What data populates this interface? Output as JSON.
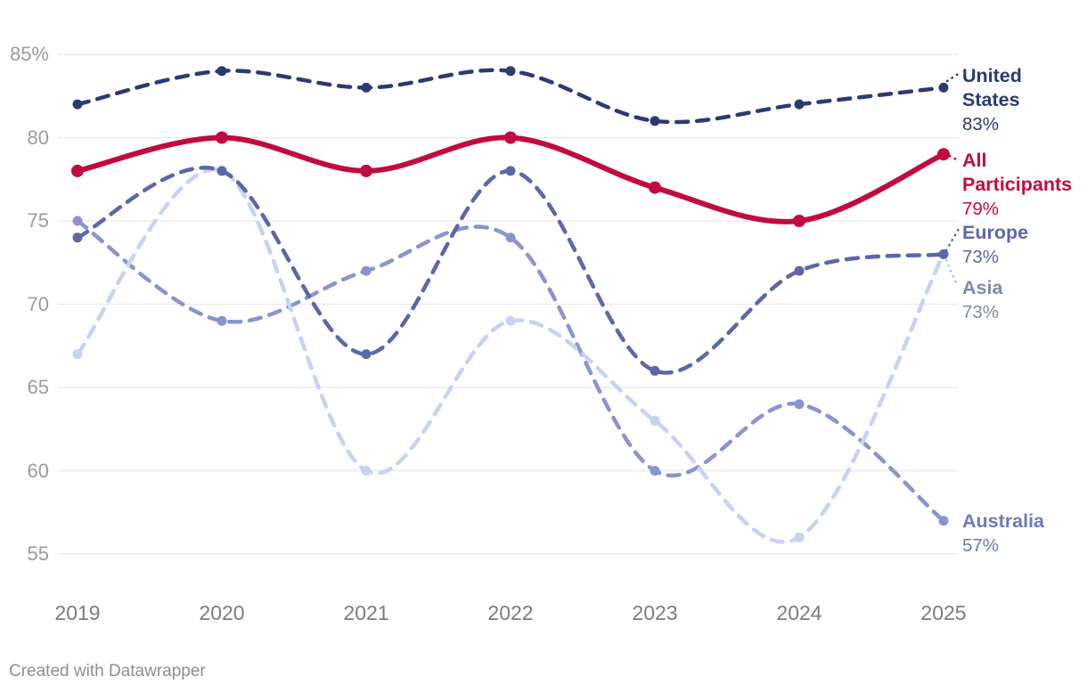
{
  "chart_data": {
    "type": "line",
    "title": "",
    "xlabel": "",
    "ylabel": "",
    "x": [
      2019,
      2020,
      2021,
      2022,
      2023,
      2024,
      2025
    ],
    "x_tick_labels": [
      "2019",
      "2020",
      "2021",
      "2022",
      "2023",
      "2024",
      "2025"
    ],
    "y_ticks": [
      {
        "value": 85,
        "label": "85%"
      },
      {
        "value": 80,
        "label": "80"
      },
      {
        "value": 75,
        "label": "75"
      },
      {
        "value": 70,
        "label": "70"
      },
      {
        "value": 65,
        "label": "65"
      },
      {
        "value": 60,
        "label": "60"
      },
      {
        "value": 55,
        "label": "55"
      }
    ],
    "ylim": [
      55,
      85
    ],
    "grid": "horizontal",
    "legend_position": "end-of-line-labels-right",
    "line_shape": "smooth-spline",
    "series": [
      {
        "name": "United States",
        "label_lines": [
          "United",
          "States"
        ],
        "value_label": "83%",
        "values": [
          82,
          84,
          83,
          84,
          81,
          82,
          83
        ],
        "color": "#2c3a72",
        "label_color": "#2b3a72",
        "style": "dashed",
        "width": 4.5,
        "z": 3
      },
      {
        "name": "All Participants",
        "label_lines": [
          "All",
          "Participants"
        ],
        "value_label": "79%",
        "values": [
          78,
          80,
          78,
          80,
          77,
          75,
          79
        ],
        "color": "#c10b3f",
        "label_color": "#c10b3f",
        "style": "solid",
        "width": 6,
        "z": 4
      },
      {
        "name": "Europe",
        "label_lines": [
          "Europe"
        ],
        "value_label": "73%",
        "values": [
          74,
          78,
          67,
          78,
          66,
          72,
          73
        ],
        "color": "#5b67a8",
        "label_color": "#5b67a8",
        "style": "dashed",
        "width": 4.5,
        "z": 2
      },
      {
        "name": "Asia",
        "label_lines": [
          "Asia"
        ],
        "value_label": "73%",
        "values": [
          67,
          78,
          60,
          69,
          63,
          56,
          73
        ],
        "color": "#c8d2f3",
        "label_color": "#8089ab",
        "style": "dashed",
        "width": 4.5,
        "z": 1
      },
      {
        "name": "Australia",
        "label_lines": [
          "Australia"
        ],
        "value_label": "57%",
        "values": [
          75,
          69,
          72,
          74,
          60,
          64,
          57
        ],
        "color": "#8a94ce",
        "label_color": "#6e7ab8",
        "style": "dashed",
        "width": 4.5,
        "z": 0
      }
    ]
  },
  "footer": {
    "credit": "Created with Datawrapper"
  }
}
